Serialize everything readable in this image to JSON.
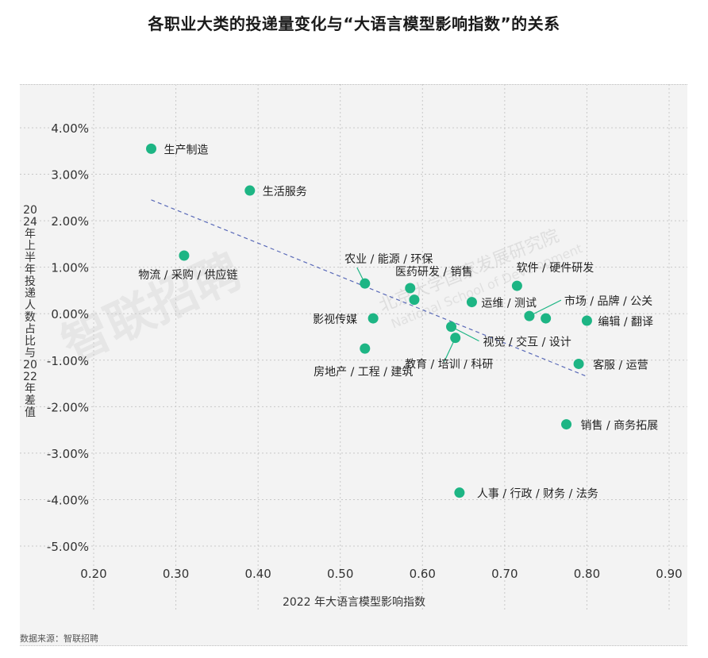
{
  "title": "各职业大类的投递量变化与“大语言模型影响指数”的关系",
  "source": "数据来源：智联招聘",
  "watermark": {
    "brand": "智联招聘",
    "institute_cn": "北京大学国家发展研究院",
    "institute_en": "National School of Development"
  },
  "colors": {
    "point": "#1db584",
    "trend": "#5a6ab8",
    "grid": "#c8c8c8"
  },
  "chart_data": {
    "type": "scatter",
    "xlabel": "2022 年大语言模型影响指数",
    "ylabel": "2024 年上半年投递人数占比与 2022 年差值",
    "xlim": [
      0.2,
      0.9
    ],
    "ylim": [
      -5.0,
      4.0
    ],
    "x_ticks": [
      "0.20",
      "0.30",
      "0.40",
      "0.50",
      "0.60",
      "0.70",
      "0.80",
      "0.90"
    ],
    "y_ticks": [
      "4.00%",
      "3.00%",
      "2.00%",
      "1.00%",
      "0.00%",
      "-1.00%",
      "-2.00%",
      "-3.00%",
      "-4.00%",
      "-5.00%"
    ],
    "grid": true,
    "trendline": {
      "style": "dashed",
      "from": [
        0.27,
        2.45
      ],
      "to": [
        0.8,
        -1.35
      ]
    },
    "points": [
      {
        "label": "生产制造",
        "x": 0.27,
        "y": 3.55
      },
      {
        "label": "生活服务",
        "x": 0.39,
        "y": 2.65
      },
      {
        "label": "物流 / 采购 / 供应链",
        "x": 0.31,
        "y": 1.25
      },
      {
        "label": "农业 / 能源 / 环保",
        "x": 0.53,
        "y": 0.65
      },
      {
        "label": "医药研发 / 销售",
        "x": 0.585,
        "y": 0.55
      },
      {
        "label": "医药研发 / 销售",
        "x": 0.59,
        "y": 0.3
      },
      {
        "label": "软件 / 硬件研发",
        "x": 0.715,
        "y": 0.6
      },
      {
        "label": "运维 / 测试",
        "x": 0.66,
        "y": 0.25
      },
      {
        "label": "市场 / 品牌 / 公关",
        "x": 0.73,
        "y": -0.05
      },
      {
        "label": "市场 / 品牌 / 公关",
        "x": 0.75,
        "y": -0.1
      },
      {
        "label": "编辑 / 翻译",
        "x": 0.8,
        "y": -0.15
      },
      {
        "label": "影视传媒",
        "x": 0.54,
        "y": -0.1
      },
      {
        "label": "视觉 / 交互 / 设计",
        "x": 0.635,
        "y": -0.28
      },
      {
        "label": "教育 / 培训 / 科研",
        "x": 0.64,
        "y": -0.52
      },
      {
        "label": "房地产 / 工程 / 建筑",
        "x": 0.53,
        "y": -0.75
      },
      {
        "label": "客服 / 运营",
        "x": 0.79,
        "y": -1.08
      },
      {
        "label": "销售 / 商务拓展",
        "x": 0.775,
        "y": -2.38
      },
      {
        "label": "人事 / 行政 / 财务 / 法务",
        "x": 0.645,
        "y": -3.85
      }
    ]
  }
}
